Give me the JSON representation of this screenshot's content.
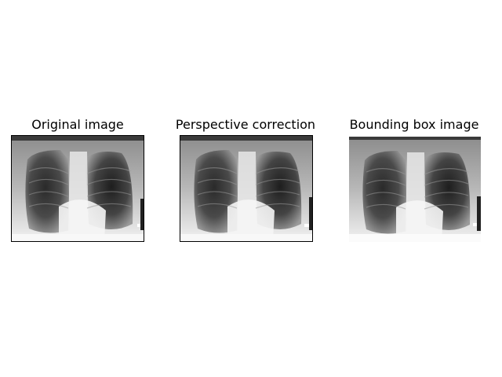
{
  "figure": {
    "panels": [
      {
        "title": "Original image",
        "content": "chest-xray",
        "framed": true
      },
      {
        "title": "Perspective correction",
        "content": "chest-xray",
        "framed": true
      },
      {
        "title": "Bounding box image",
        "content": "chest-xray",
        "framed": false
      }
    ]
  }
}
